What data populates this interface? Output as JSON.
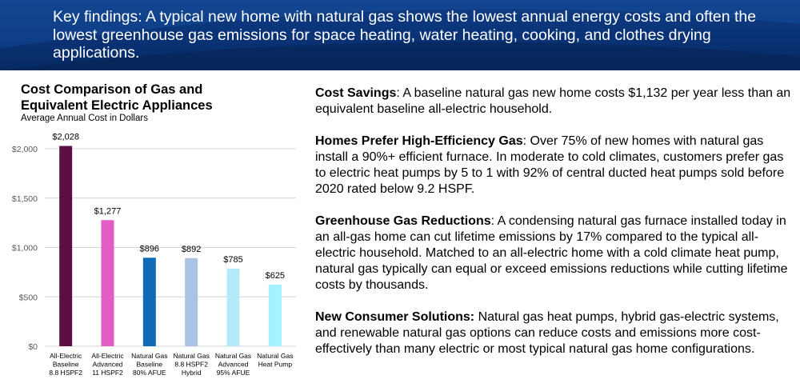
{
  "banner": {
    "text": "Key findings: A typical new home with natural gas shows the lowest annual energy costs and often the lowest greenhouse gas emissions for space heating, water heating, cooking, and clothes drying applications."
  },
  "chart_title": "Cost Comparison of Gas and Equivalent Electric Appliances",
  "chart_subtitle": "Average Annual Cost in Dollars",
  "chart_data": {
    "type": "bar",
    "title": "Cost Comparison of Gas and Equivalent Electric Appliances",
    "subtitle": "Average Annual Cost in Dollars",
    "categories": [
      [
        "All-Electric",
        "Baseline",
        "8.8 HSPF2"
      ],
      [
        "All-Electric",
        "Advanced",
        "11 HSPF2"
      ],
      [
        "Natural Gas",
        "Baseline",
        "80% AFUE"
      ],
      [
        "Natural Gas",
        "8.8 HSPF2",
        "Hybrid"
      ],
      [
        "Natural Gas",
        "Advanced",
        "95% AFUE"
      ],
      [
        "Natural Gas",
        "Heat Pump"
      ]
    ],
    "values": [
      2028,
      1277,
      896,
      892,
      785,
      625
    ],
    "value_labels": [
      "$2,028",
      "$1,277",
      "$896",
      "$892",
      "$785",
      "$625"
    ],
    "bar_colors": [
      "#5b0f45",
      "#e45bc3",
      "#0d6ab8",
      "#a9c3e5",
      "#b3ebfb",
      "#a4f1ff"
    ],
    "ylim": [
      0,
      2000
    ],
    "yticks": [
      0,
      500,
      1000,
      1500,
      2000
    ],
    "ytick_labels": [
      "$0",
      "$500",
      "$1,000",
      "$1,500",
      "$2,000"
    ],
    "grid": true,
    "xlabel": "",
    "ylabel": ""
  },
  "findings": [
    {
      "title": "Cost Savings",
      "sep": ": ",
      "text": "A baseline natural gas new home costs $1,132 per year less than an equivalent baseline all-electric household."
    },
    {
      "title": "Homes Prefer High-Efficiency Gas",
      "sep": ": ",
      "text": "Over 75% of new homes with natural gas install a 90%+ efficient furnace. In moderate to cold climates, customers prefer gas to electric heat pumps by 5 to 1 with 92% of central ducted heat pumps sold before 2020 rated below 9.2 HSPF."
    },
    {
      "title": "Greenhouse Gas Reductions",
      "sep": ": ",
      "text": "A condensing natural gas furnace installed today in an all-gas home can cut lifetime emissions by 17% compared to the typical all-electric household. Matched to an all-electric home with a cold climate heat pump, natural gas typically can equal or exceed emissions reductions while cutting lifetime costs by thousands."
    },
    {
      "title": "New Consumer Solutions:",
      "sep": " ",
      "text": "Natural gas heat pumps, hybrid gas-electric systems, and renewable natural gas options can reduce costs and emissions more cost-effectively than many electric or most typical natural gas home configurations."
    }
  ]
}
